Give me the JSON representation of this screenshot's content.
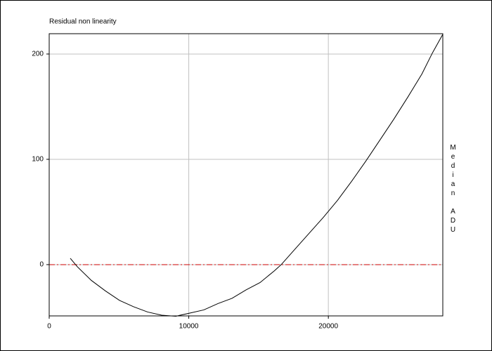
{
  "chart_data": {
    "type": "line",
    "title": "Residual non linearity",
    "y_label": "Median ADU",
    "x": [
      1510,
      2015,
      3020,
      4030,
      5040,
      6045,
      7050,
      8060,
      9070,
      10075,
      11080,
      12090,
      13100,
      14105,
      15110,
      16120,
      16625,
      17630,
      18640,
      19650,
      20655,
      21660,
      22670,
      23680,
      24685,
      25690,
      26700,
      27455,
      28210
    ],
    "series": [
      {
        "color": "#000000",
        "values": [
          6,
          -2,
          -15,
          -25,
          -34,
          -40,
          -45,
          -48,
          -49,
          -46,
          -43,
          -37,
          -32,
          -24,
          -17,
          -6,
          0,
          15,
          30,
          45,
          61,
          79,
          98,
          118,
          138,
          159,
          181,
          201,
          219
        ]
      }
    ],
    "xlim": [
      0,
      28200
    ],
    "xticks": [
      0,
      10000,
      20000
    ],
    "ylim": [
      -48.7,
      219.3
    ],
    "yticks": [
      0,
      100,
      200
    ],
    "grid": true,
    "reference_line": {
      "value": 0,
      "color": "#cc0000"
    }
  }
}
